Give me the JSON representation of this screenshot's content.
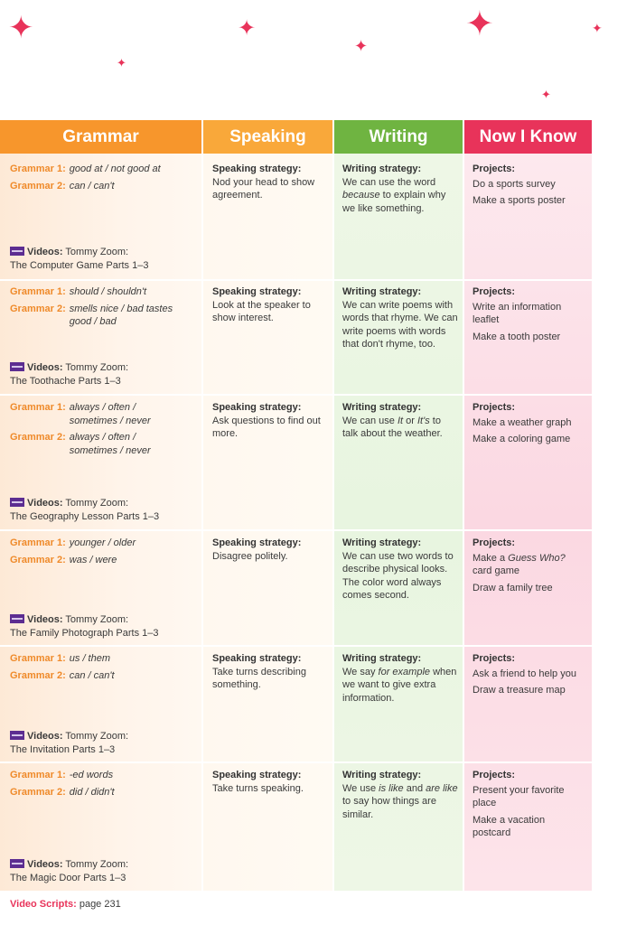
{
  "headers": {
    "grammar": "Grammar",
    "speaking": "Speaking",
    "writing": "Writing",
    "now_i_know": "Now I Know"
  },
  "colors": {
    "grammar": "#f7962c",
    "speaking": "#f9a83a",
    "writing": "#6fb441",
    "now_i_know": "#e8335a"
  },
  "rows": [
    {
      "grammar": [
        {
          "label": "Grammar 1:",
          "text": "good at / not good at"
        },
        {
          "label": "Grammar 2:",
          "text": "can / can't"
        }
      ],
      "video_label": "Videos:",
      "video_line1": "Tommy Zoom:",
      "video_line2": "The Computer Game Parts 1–3",
      "speaking_label": "Speaking strategy:",
      "speaking_text": "Nod your head to show agreement.",
      "writing_label": "Writing strategy:",
      "writing_parts": [
        "We can use the word ",
        "because",
        " to explain why we like something."
      ],
      "projects_label": "Projects:",
      "projects": [
        [
          "Do a sports survey"
        ],
        [
          "Make a sports poster"
        ]
      ]
    },
    {
      "grammar": [
        {
          "label": "Grammar 1:",
          "text": "should / shouldn't"
        },
        {
          "label": "Grammar 2:",
          "text": "smells nice / bad tastes good / bad"
        }
      ],
      "video_label": "Videos:",
      "video_line1": "Tommy Zoom:",
      "video_line2": "The Toothache Parts 1–3",
      "speaking_label": "Speaking strategy:",
      "speaking_text": "Look at the speaker to show interest.",
      "writing_label": "Writing strategy:",
      "writing_parts": [
        "We can write poems with words that rhyme. We can write poems with words that don't rhyme, too."
      ],
      "projects_label": "Projects:",
      "projects": [
        [
          "Write an information leaflet"
        ],
        [
          "Make a tooth poster"
        ]
      ]
    },
    {
      "grammar": [
        {
          "label": "Grammar 1:",
          "text": "always / often / sometimes / never"
        },
        {
          "label": "Grammar 2:",
          "text": "always / often / sometimes / never"
        }
      ],
      "video_label": "Videos:",
      "video_line1": "Tommy Zoom:",
      "video_line2": "The Geography Lesson Parts 1–3",
      "speaking_label": "Speaking strategy:",
      "speaking_text": "Ask questions to find out more.",
      "writing_label": "Writing strategy:",
      "writing_parts": [
        "We can use ",
        "It",
        " or ",
        "It's",
        " to talk about the weather."
      ],
      "projects_label": "Projects:",
      "projects": [
        [
          "Make a weather graph"
        ],
        [
          "Make a coloring game"
        ]
      ]
    },
    {
      "grammar": [
        {
          "label": "Grammar 1:",
          "text": "younger / older"
        },
        {
          "label": "Grammar 2:",
          "text": "was / were"
        }
      ],
      "video_label": "Videos:",
      "video_line1": "Tommy Zoom:",
      "video_line2": "The Family Photograph Parts 1–3",
      "speaking_label": "Speaking strategy:",
      "speaking_text": "Disagree politely.",
      "writing_label": "Writing strategy:",
      "writing_parts": [
        "We can use two words to describe physical looks. The color word always comes second."
      ],
      "projects_label": "Projects:",
      "projects": [
        [
          "Make a ",
          "Guess Who?",
          " card game"
        ],
        [
          "Draw a family tree"
        ]
      ]
    },
    {
      "grammar": [
        {
          "label": "Grammar 1:",
          "text": "us / them"
        },
        {
          "label": "Grammar 2:",
          "text": "can / can't"
        }
      ],
      "video_label": "Videos:",
      "video_line1": "Tommy Zoom:",
      "video_line2": "The Invitation Parts 1–3",
      "speaking_label": "Speaking strategy:",
      "speaking_text": "Take turns describing something.",
      "writing_label": "Writing strategy:",
      "writing_parts": [
        "We say ",
        "for example",
        " when we want to give extra information."
      ],
      "projects_label": "Projects:",
      "projects": [
        [
          "Ask a friend to help you"
        ],
        [
          "Draw a treasure map"
        ]
      ]
    },
    {
      "grammar": [
        {
          "label": "Grammar 1:",
          "text": "-ed words"
        },
        {
          "label": "Grammar 2:",
          "text": "did / didn't"
        }
      ],
      "video_label": "Videos:",
      "video_line1": "Tommy Zoom:",
      "video_line2": "The Magic Door Parts 1–3",
      "speaking_label": "Speaking strategy:",
      "speaking_text": "Take turns speaking.",
      "writing_label": "Writing strategy:",
      "writing_parts": [
        "We use ",
        "is like",
        " and ",
        "are like",
        " to say how things are similar."
      ],
      "projects_label": "Projects:",
      "projects": [
        [
          "Present your favorite place"
        ],
        [
          "Make a vacation postcard"
        ]
      ]
    }
  ],
  "footer": {
    "label": "Video Scripts:",
    "text": "page 231"
  }
}
